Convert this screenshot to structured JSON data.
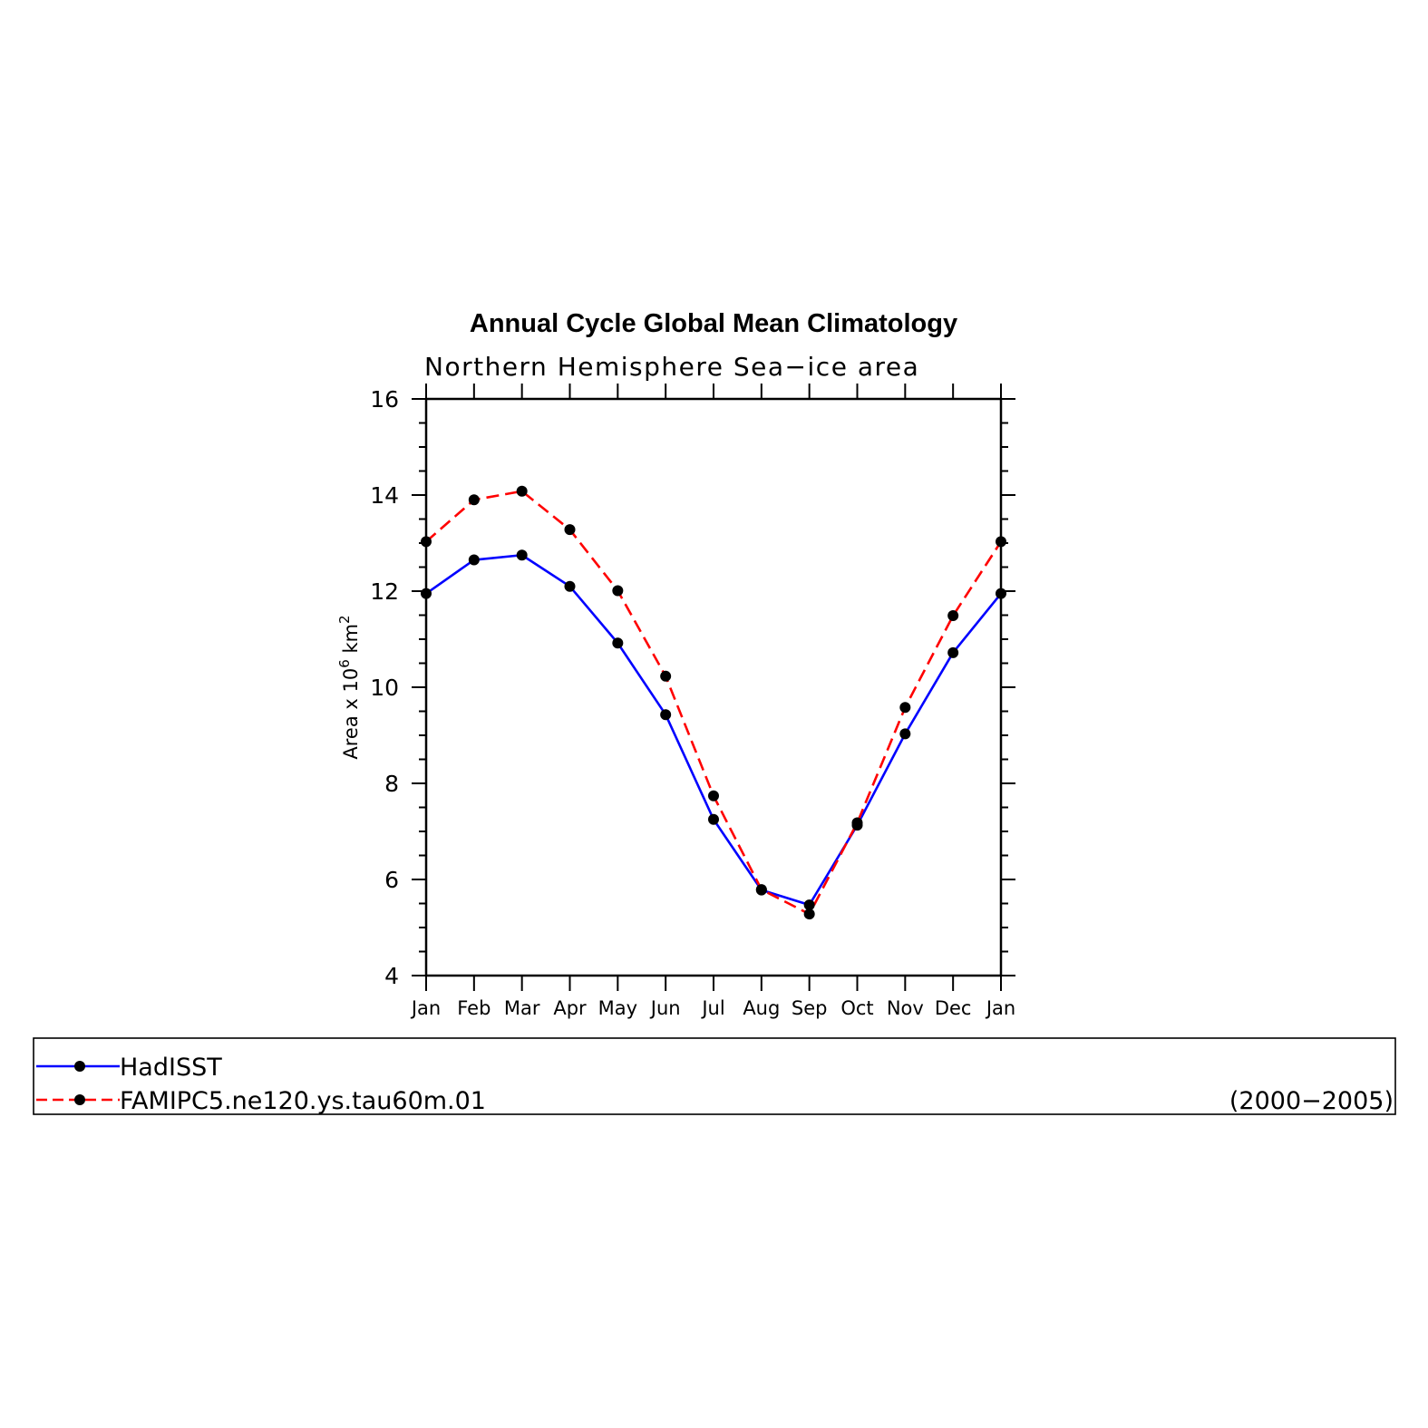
{
  "chart_data": {
    "type": "line",
    "title": "Annual Cycle Global Mean Climatology",
    "subtitle": "Northern Hemisphere Sea−ice area",
    "ylabel_main": "Area x 10",
    "ylabel_exp": "6",
    "ylabel_unit": "km",
    "ylabel_unit_exp": "2",
    "categories": [
      "Jan",
      "Feb",
      "Mar",
      "Apr",
      "May",
      "Jun",
      "Jul",
      "Aug",
      "Sep",
      "Oct",
      "Nov",
      "Dec",
      "Jan"
    ],
    "ylim": [
      4,
      16
    ],
    "yticks": [
      4,
      6,
      8,
      10,
      12,
      14,
      16
    ],
    "series": [
      {
        "name": "HadISST",
        "color": "#0000ff",
        "dash": "solid",
        "values": [
          11.95,
          12.65,
          12.75,
          12.1,
          10.92,
          9.43,
          7.25,
          5.78,
          5.47,
          7.13,
          9.03,
          10.72,
          11.95
        ]
      },
      {
        "name": "FAMIPC5.ne120.ys.tau60m.01",
        "color": "#ff0000",
        "dash": "dashed",
        "values": [
          13.03,
          13.9,
          14.08,
          13.28,
          12.01,
          10.23,
          7.74,
          5.79,
          5.28,
          7.18,
          9.58,
          11.49,
          13.03
        ]
      }
    ],
    "legend_period": "(2000−2005)",
    "legend_placement": "below"
  }
}
